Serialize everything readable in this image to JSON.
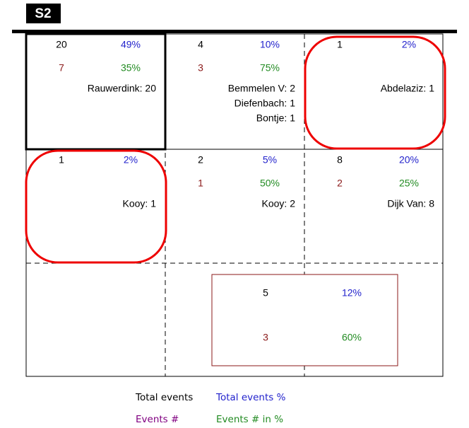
{
  "header": {
    "label": "S2"
  },
  "cells": [
    {
      "total": "20",
      "total_pct": "49%",
      "events": "7",
      "events_pct": "35%",
      "names": [
        "Rauwerdink: 20"
      ]
    },
    {
      "total": "4",
      "total_pct": "10%",
      "events": "3",
      "events_pct": "75%",
      "names": [
        "Bemmelen V: 2",
        "Diefenbach: 1",
        "Bontje: 1"
      ]
    },
    {
      "total": "1",
      "total_pct": "2%",
      "names": [
        "Abdelaziz: 1"
      ]
    },
    {
      "total": "1",
      "total_pct": "2%",
      "names": [
        "Kooy: 1"
      ]
    },
    {
      "total": "2",
      "total_pct": "5%",
      "events": "1",
      "events_pct": "50%",
      "names": [
        "Kooy: 2"
      ]
    },
    {
      "total": "8",
      "total_pct": "20%",
      "events": "2",
      "events_pct": "25%",
      "names": [
        "Dijk Van: 8"
      ]
    }
  ],
  "summary": {
    "total": "5",
    "total_pct": "12%",
    "events": "3",
    "events_pct": "60%"
  },
  "legend": {
    "total": "Total events",
    "total_pct": "Total events %",
    "events": "Events #",
    "events_pct": "Events # in %"
  }
}
